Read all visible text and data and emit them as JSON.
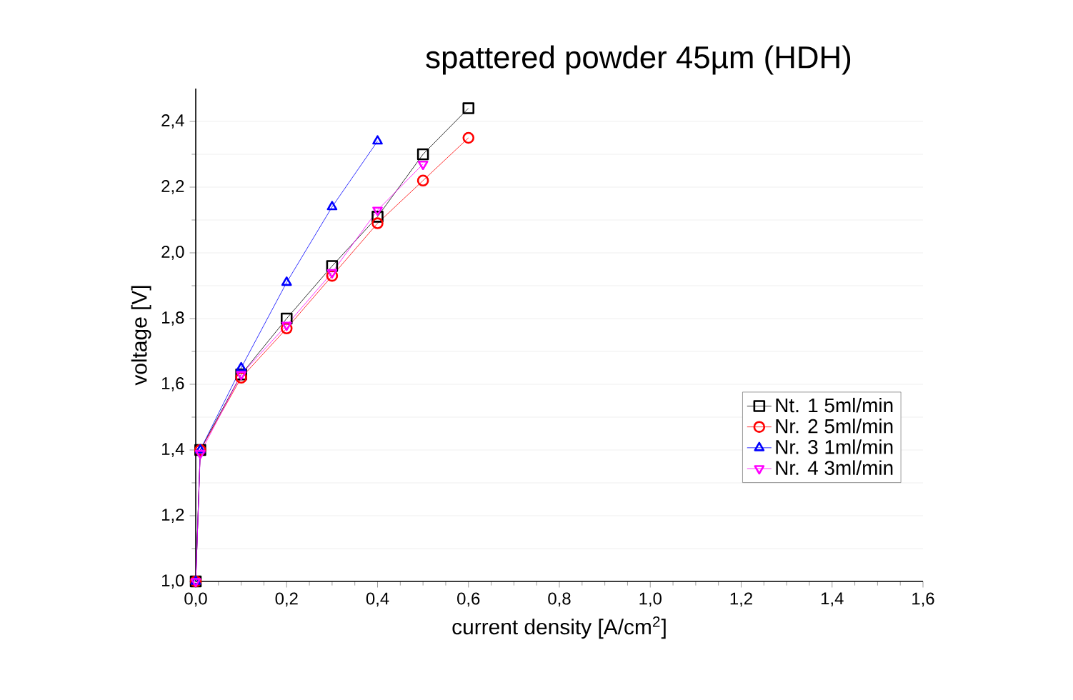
{
  "chart_data": {
    "type": "line",
    "title": "spattered powder 45µm (HDH)",
    "xlabel": "current density [A/cm$^{2}$]",
    "ylabel": "voltage [V]",
    "xlim": [
      0,
      1.6
    ],
    "ylim": [
      1.0,
      2.5
    ],
    "xticks": [
      {
        "value": 0,
        "label": "0,0"
      },
      {
        "value": 0.2,
        "label": "0,2"
      },
      {
        "value": 0.4,
        "label": "0,4"
      },
      {
        "value": 0.6,
        "label": "0,6"
      },
      {
        "value": 0.8,
        "label": "0,8"
      },
      {
        "value": 1.0,
        "label": "1,0"
      },
      {
        "value": 1.2,
        "label": "1,2"
      },
      {
        "value": 1.4,
        "label": "1,4"
      },
      {
        "value": 1.6,
        "label": "1,6"
      }
    ],
    "yticks": [
      {
        "value": 1.0,
        "label": "1,0"
      },
      {
        "value": 1.2,
        "label": "1,2"
      },
      {
        "value": 1.4,
        "label": "1,4"
      },
      {
        "value": 1.6,
        "label": "1,6"
      },
      {
        "value": 1.8,
        "label": "1,8"
      },
      {
        "value": 2.0,
        "label": "2,0"
      },
      {
        "value": 2.2,
        "label": "2,2"
      },
      {
        "value": 2.4,
        "label": "2,4"
      }
    ],
    "grid": "y",
    "legend": "right",
    "series": [
      {
        "name": "Nt. 1 5ml/min",
        "color": "#000000",
        "marker": "square",
        "x": [
          0,
          0.01,
          0.1,
          0.2,
          0.3,
          0.4,
          0.5,
          0.6
        ],
        "values": [
          1.0,
          1.4,
          1.63,
          1.8,
          1.96,
          2.11,
          2.3,
          2.44
        ]
      },
      {
        "name": "Nr. 2 5ml/min",
        "color": "#ff0000",
        "marker": "circle",
        "x": [
          0,
          0.01,
          0.1,
          0.2,
          0.3,
          0.4,
          0.5,
          0.6
        ],
        "values": [
          1.0,
          1.4,
          1.62,
          1.77,
          1.93,
          2.09,
          2.22,
          2.35
        ]
      },
      {
        "name": "Nr. 3 1ml/min",
        "color": "#0000ff",
        "marker": "triangle",
        "x": [
          0,
          0.01,
          0.1,
          0.2,
          0.3,
          0.4
        ],
        "values": [
          1.0,
          1.4,
          1.65,
          1.91,
          2.14,
          2.34
        ]
      },
      {
        "name": "Nr. 4 3ml/min",
        "color": "#ff00ff",
        "marker": "triangle down",
        "x": [
          0,
          0.01,
          0.1,
          0.2,
          0.3,
          0.4,
          0.5
        ],
        "values": [
          1.0,
          1.39,
          1.63,
          1.78,
          1.94,
          2.13,
          2.27
        ]
      }
    ]
  }
}
